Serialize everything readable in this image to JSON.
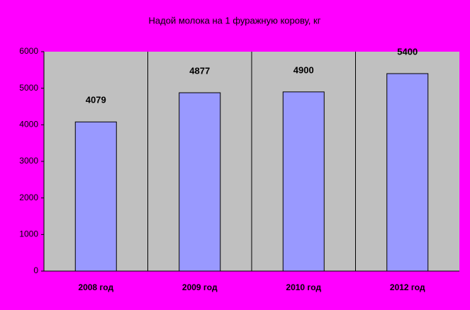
{
  "chart_data": {
    "type": "bar",
    "title": "Надой молока на 1 фуражную корову, кг",
    "categories": [
      "2008 год",
      "2009 год",
      "2010 год",
      "2012 год"
    ],
    "values": [
      4079,
      4877,
      4900,
      5400
    ],
    "color": "#9999ff",
    "plot_color": "#c0c0c0",
    "ylim": [
      0,
      6000
    ],
    "yticks": [
      0,
      1000,
      2000,
      3000,
      4000,
      5000,
      6000
    ],
    "grid": false
  }
}
